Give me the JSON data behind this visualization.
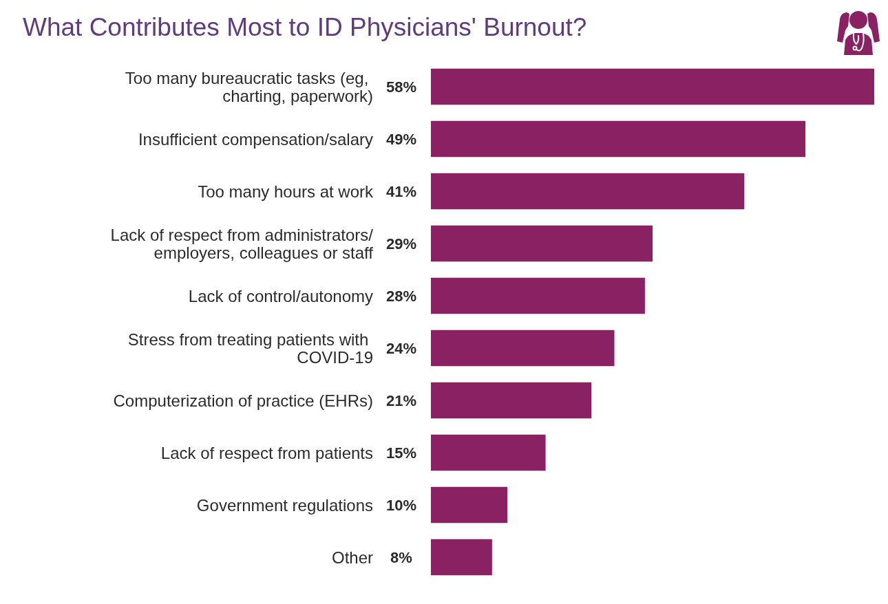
{
  "chart_data": {
    "type": "bar",
    "orientation": "horizontal",
    "title": "What Contributes Most to ID Physicians' Burnout?",
    "categories": [
      "Too many bureaucratic tasks (eg, charting, paperwork)",
      "Insufficient compensation/salary",
      "Too many hours at work",
      "Lack of respect from administrators/employers, colleagues or staff",
      "Lack of control/autonomy",
      "Stress from treating patients with COVID-19",
      "Computerization of practice (EHRs)",
      "Lack of respect from patients",
      "Government regulations",
      "Other"
    ],
    "values": [
      58,
      49,
      41,
      29,
      28,
      24,
      21,
      15,
      10,
      8
    ],
    "color": "#8a2163",
    "value_labels": [
      "58%",
      "49%",
      "41%",
      "29%",
      "28%",
      "24%",
      "21%",
      "15%",
      "10%",
      "8%"
    ]
  }
}
